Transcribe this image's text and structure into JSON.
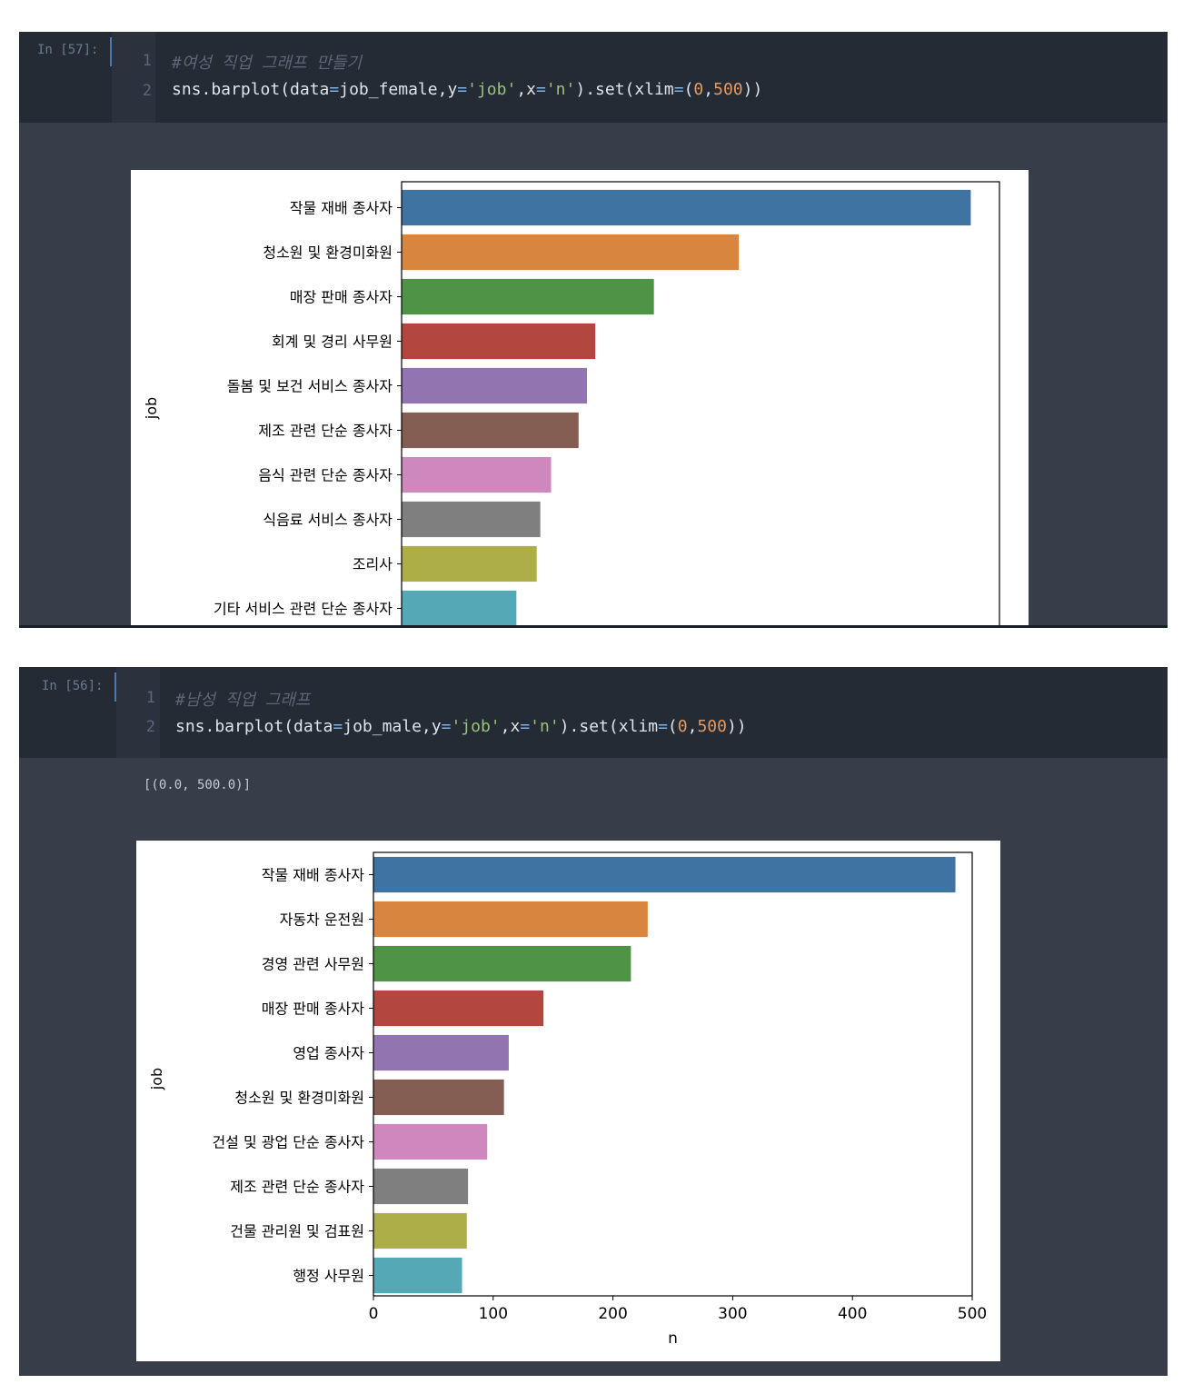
{
  "cells": [
    {
      "prompt": "In [57]:",
      "line_numbers": [
        "1",
        "2"
      ],
      "comment": "#여성 직업 그래프 만들기",
      "code": {
        "func": "sns.barplot(data",
        "eq1": "=",
        "data_arg": "job_female,y",
        "eq2": "=",
        "y_arg": "'job'",
        "comma": ",x",
        "eq3": "=",
        "x_arg": "'n'",
        "set_call": ").set(xlim",
        "eq4": "=",
        "paren": "(",
        "zero": "0",
        "sep": ",",
        "five_hundred": "500",
        "close": "))"
      },
      "output": ""
    },
    {
      "prompt": "In [56]:",
      "line_numbers": [
        "1",
        "2"
      ],
      "comment": "#남성 직업 그래프",
      "code": {
        "func": "sns.barplot(data",
        "eq1": "=",
        "data_arg": "job_male,y",
        "eq2": "=",
        "y_arg": "'job'",
        "comma": ",x",
        "eq3": "=",
        "x_arg": "'n'",
        "set_call": ").set(xlim",
        "eq4": "=",
        "paren": "(",
        "zero": "0",
        "sep": ",",
        "five_hundred": "500",
        "close": "))"
      },
      "output": "[(0.0, 500.0)]"
    }
  ],
  "colors": [
    "#3f73a1",
    "#d88540",
    "#4e9346",
    "#b3473f",
    "#9174b0",
    "#845e52",
    "#cf88bd",
    "#7f7f7f",
    "#aeae48",
    "#55a9b6"
  ],
  "chart_data": [
    {
      "type": "bar",
      "orientation": "horizontal",
      "ylabel": "job",
      "xlabel": "",
      "xlim": [
        0,
        500
      ],
      "categories": [
        "작물 재배 종사자",
        "청소원 및 환경미화원",
        "매장 판매 종사자",
        "회계 및 경리 사무원",
        "돌봄 및 보건 서비스 종사자",
        "제조 관련 단순 종사자",
        "음식 관련 단순 종사자",
        "식음료 서비스 종사자",
        "조리사",
        "기타 서비스 관련 단순 종사자"
      ],
      "values": [
        476,
        282,
        211,
        162,
        155,
        148,
        125,
        116,
        113,
        96
      ]
    },
    {
      "type": "bar",
      "orientation": "horizontal",
      "ylabel": "job",
      "xlabel": "n",
      "xlim": [
        0,
        500
      ],
      "xticks": [
        "0",
        "100",
        "200",
        "300",
        "400",
        "500"
      ],
      "categories": [
        "작물 재배 종사자",
        "자동차 운전원",
        "경영 관련 사무원",
        "매장 판매 종사자",
        "영업 종사자",
        "청소원 및 환경미화원",
        "건설 및 광업 단순 종사자",
        "제조 관련 단순 종사자",
        "건물 관리원 및 검표원",
        "행정 사무원"
      ],
      "values": [
        486,
        229,
        215,
        142,
        113,
        109,
        95,
        79,
        78,
        74
      ]
    }
  ]
}
